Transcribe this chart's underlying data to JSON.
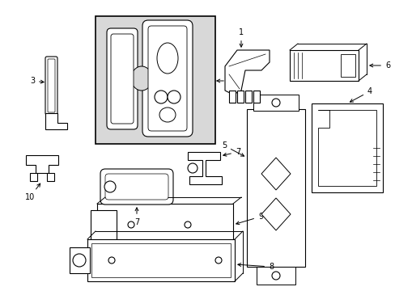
{
  "background_color": "#ffffff",
  "line_color": "#000000",
  "fig_width": 4.89,
  "fig_height": 3.6,
  "dpi": 100,
  "gray_fill": "#d8d8d8",
  "white_fill": "#ffffff"
}
